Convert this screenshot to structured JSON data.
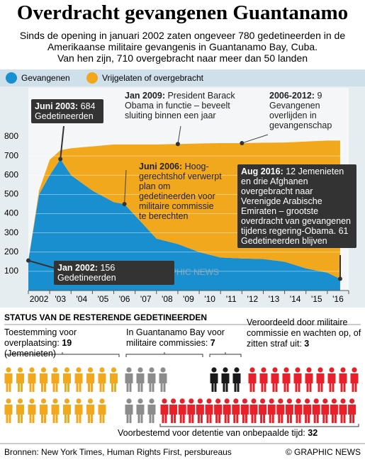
{
  "header": {
    "title": "Overdracht gevangenen Guantanamo",
    "subtitle": [
      "Sinds de opening in januari 2002 zaten ongeveer 780 gedetineerden in de",
      "Amerikaanse militaire gevangenis in Guantanamo Bay, Cuba.",
      "Van hen zijn, 710 overgebracht naar meer dan 50 landen"
    ]
  },
  "chart_data": {
    "type": "area",
    "stacked": true,
    "x": [
      2002.0,
      2002.5,
      2003.0,
      2003.5,
      2004,
      2005,
      2006,
      2006.5,
      2007,
      2008,
      2009,
      2010,
      2011,
      2012,
      2013,
      2014,
      2015,
      2016,
      2016.6
    ],
    "series": [
      {
        "name": "Gevangenen",
        "color": "#1a8fd0",
        "values": [
          156,
          500,
          600,
          684,
          600,
          520,
          460,
          450,
          390,
          270,
          242,
          200,
          172,
          167,
          164,
          150,
          115,
          93,
          61
        ]
      },
      {
        "name": "Vrijgelaten of overgebracht",
        "color": "#f2a81d",
        "values": [
          0,
          20,
          80,
          46,
          140,
          230,
          300,
          310,
          370,
          490,
          520,
          565,
          595,
          600,
          605,
          620,
          660,
          687,
          719
        ]
      }
    ],
    "xlim": [
      2002,
      2017
    ],
    "xticks": [
      2002,
      {
        "value": 2003,
        "label": "'03"
      },
      {
        "value": 2004,
        "label": "'04"
      },
      {
        "value": 2005,
        "label": "'05"
      },
      {
        "value": 2006,
        "label": "'06"
      },
      {
        "value": 2007,
        "label": "'07"
      },
      {
        "value": 2008,
        "label": "'08"
      },
      {
        "value": 2009,
        "label": "'09"
      },
      {
        "value": 2010,
        "label": "'10"
      },
      {
        "value": 2011,
        "label": "'11"
      },
      {
        "value": 2012,
        "label": "'12"
      },
      {
        "value": 2013,
        "label": "'13"
      },
      {
        "value": 2014,
        "label": "'14"
      },
      {
        "value": 2015,
        "label": "'15"
      },
      {
        "value": 2016,
        "label": "'16"
      }
    ],
    "ylim": [
      0,
      800
    ],
    "yticks": [
      100,
      200,
      300,
      400,
      500,
      600,
      700,
      800
    ],
    "grid": true,
    "annotations": [
      {
        "date": "Juni 2003:",
        "text": "684 Gedetineerden",
        "x": 2003.5,
        "y": 684
      },
      {
        "date": "Jan 2009:",
        "text": "President Barack Obama in functie – beveelt sluiting binnen een jaar",
        "x": 2009,
        "y": 762
      },
      {
        "date": "2006-2012:",
        "text": "9 Gevangenen overlijden in gevangenschap",
        "x": 2012,
        "y": 767
      },
      {
        "date": "Juni 2006:",
        "text": "Hoog-gerechtshof verwerpt plan om gedetineerden voor militaire commissie te berechten",
        "x": 2006.5,
        "y": 450
      },
      {
        "date": "Aug 2016:",
        "text": "12 Jemenieten en drie Afghanen overgebracht naar Verenigde Arabische Emiraten – grootste overdracht van gevangenen tijdens regering-Obama. 61 Gedetineerden blijven",
        "x": 2016.6,
        "y": 61
      },
      {
        "date": "Jan 2002:",
        "text": "156 Gedetineerden",
        "x": 2002,
        "y": 156
      }
    ]
  },
  "watermark": "GRAPHIC NEWS",
  "status": {
    "title": "STATUS VAN DE RESTERENDE GEDETINEERDEN",
    "groups": [
      {
        "label": "Toestemming voor overplaatsing:",
        "count": 19,
        "note": "(Jemenieten)",
        "color": "#f2a81d"
      },
      {
        "label": "In Guantanamo Bay voor militaire commissies:",
        "count": 7,
        "color": "#8c8c8c"
      },
      {
        "label": "Veroordeeld door militaire commissie en wachten op, of zitten straf uit:",
        "count": 3,
        "color": "#1a1a1a"
      },
      {
        "label": "Voorbestemd voor detentie van onbepaalde tijd:",
        "count": 32,
        "color": "#e8202a"
      }
    ]
  },
  "footer": {
    "source": "Bronnen: New York Times, Human Rights First, persbureaus",
    "credit": "© GRAPHIC NEWS"
  }
}
